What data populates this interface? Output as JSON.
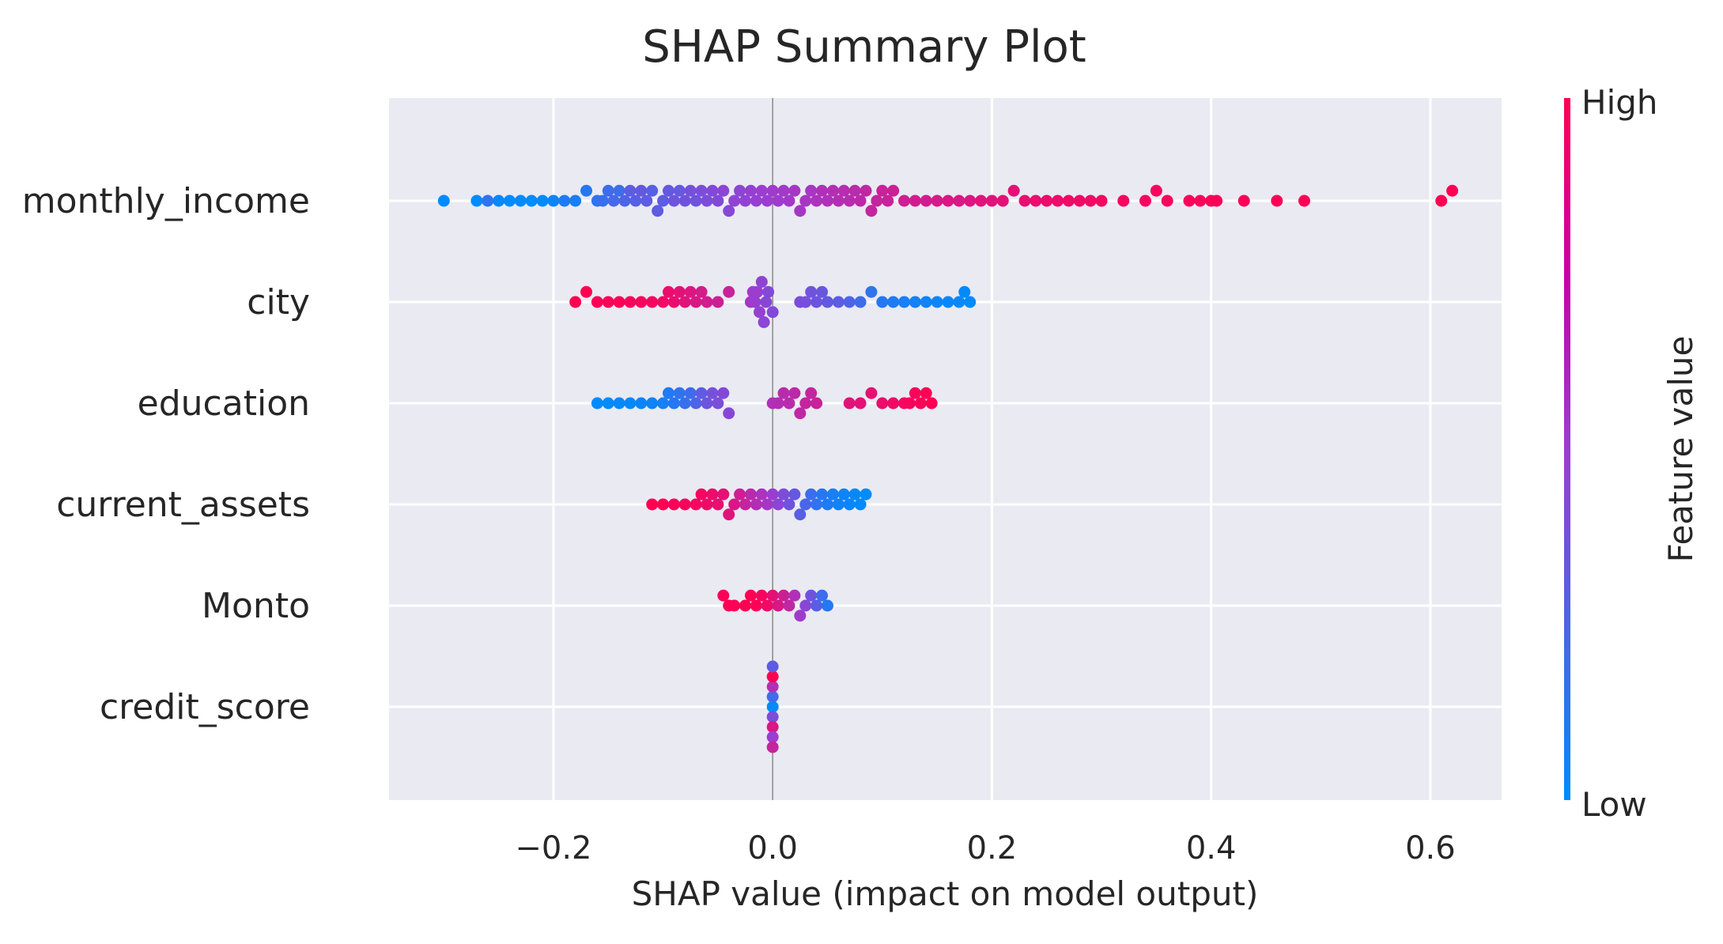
{
  "chart_data": {
    "type": "scatter",
    "subtype": "beeswarm",
    "title": "SHAP Summary Plot",
    "xlabel": "SHAP value (impact on model output)",
    "xlim": [
      -0.35,
      0.665
    ],
    "x_ticks": [
      "−0.2",
      "0.0",
      "0.2",
      "0.4",
      "0.6"
    ],
    "x_tick_values": [
      -0.2,
      0.0,
      0.2,
      0.4,
      0.6
    ],
    "grid": true,
    "background": "#eaeaf2",
    "features": [
      "monthly_income",
      "city",
      "education",
      "current_assets",
      "Monto",
      "credit_score"
    ],
    "colorbar": {
      "label": "Feature value",
      "high_label": "High",
      "low_label": "Low",
      "high_color": "#ff0052",
      "mid_color": "#c800a5",
      "low_color": "#008bfb"
    },
    "series": [
      {
        "feature": "monthly_income",
        "points": [
          [
            -0.3,
            0.0
          ],
          [
            -0.27,
            0.0
          ],
          [
            -0.26,
            0.15
          ],
          [
            -0.25,
            0.02
          ],
          [
            -0.24,
            0.0
          ],
          [
            -0.23,
            0.0
          ],
          [
            -0.22,
            0.0
          ],
          [
            -0.21,
            0.0
          ],
          [
            -0.2,
            0.05
          ],
          [
            -0.19,
            0.1
          ],
          [
            -0.18,
            0.08
          ],
          [
            -0.17,
            0.12
          ],
          [
            -0.16,
            0.15
          ],
          [
            -0.155,
            0.18
          ],
          [
            -0.15,
            0.2
          ],
          [
            -0.145,
            0.22
          ],
          [
            -0.14,
            0.2
          ],
          [
            -0.135,
            0.25
          ],
          [
            -0.13,
            0.3
          ],
          [
            -0.125,
            0.28
          ],
          [
            -0.12,
            0.32
          ],
          [
            -0.115,
            0.3
          ],
          [
            -0.11,
            0.28
          ],
          [
            -0.105,
            0.3
          ],
          [
            -0.1,
            0.3
          ],
          [
            -0.095,
            0.32
          ],
          [
            -0.09,
            0.35
          ],
          [
            -0.085,
            0.33
          ],
          [
            -0.08,
            0.36
          ],
          [
            -0.075,
            0.38
          ],
          [
            -0.07,
            0.36
          ],
          [
            -0.065,
            0.4
          ],
          [
            -0.06,
            0.4
          ],
          [
            -0.055,
            0.42
          ],
          [
            -0.05,
            0.42
          ],
          [
            -0.045,
            0.45
          ],
          [
            -0.04,
            0.44
          ],
          [
            -0.035,
            0.46
          ],
          [
            -0.03,
            0.45
          ],
          [
            -0.025,
            0.47
          ],
          [
            -0.02,
            0.48
          ],
          [
            -0.015,
            0.48
          ],
          [
            -0.01,
            0.5
          ],
          [
            -0.005,
            0.5
          ],
          [
            0.0,
            0.52
          ],
          [
            0.005,
            0.52
          ],
          [
            0.01,
            0.53
          ],
          [
            0.015,
            0.54
          ],
          [
            0.02,
            0.55
          ],
          [
            0.025,
            0.55
          ],
          [
            0.03,
            0.56
          ],
          [
            0.035,
            0.56
          ],
          [
            0.04,
            0.58
          ],
          [
            0.045,
            0.6
          ],
          [
            0.05,
            0.6
          ],
          [
            0.055,
            0.62
          ],
          [
            0.06,
            0.62
          ],
          [
            0.065,
            0.63
          ],
          [
            0.07,
            0.64
          ],
          [
            0.075,
            0.65
          ],
          [
            0.08,
            0.66
          ],
          [
            0.085,
            0.68
          ],
          [
            0.09,
            0.7
          ],
          [
            0.095,
            0.7
          ],
          [
            0.1,
            0.72
          ],
          [
            0.105,
            0.72
          ],
          [
            0.11,
            0.74
          ],
          [
            0.12,
            0.75
          ],
          [
            0.13,
            0.76
          ],
          [
            0.14,
            0.76
          ],
          [
            0.15,
            0.78
          ],
          [
            0.16,
            0.8
          ],
          [
            0.17,
            0.8
          ],
          [
            0.18,
            0.82
          ],
          [
            0.19,
            0.84
          ],
          [
            0.2,
            0.84
          ],
          [
            0.21,
            0.86
          ],
          [
            0.22,
            0.86
          ],
          [
            0.23,
            0.88
          ],
          [
            0.24,
            0.88
          ],
          [
            0.25,
            0.9
          ],
          [
            0.26,
            0.9
          ],
          [
            0.27,
            0.92
          ],
          [
            0.28,
            0.92
          ],
          [
            0.29,
            0.93
          ],
          [
            0.3,
            0.94
          ],
          [
            0.32,
            0.95
          ],
          [
            0.34,
            0.95
          ],
          [
            0.35,
            0.96
          ],
          [
            0.36,
            0.96
          ],
          [
            0.38,
            0.97
          ],
          [
            0.39,
            0.97
          ],
          [
            0.4,
            0.98
          ],
          [
            0.405,
            0.98
          ],
          [
            0.43,
            0.98
          ],
          [
            0.46,
            0.99
          ],
          [
            0.485,
            0.99
          ],
          [
            0.61,
            1.0
          ],
          [
            0.62,
            1.0
          ]
        ]
      },
      {
        "feature": "city",
        "points": [
          [
            -0.18,
            1.0
          ],
          [
            -0.17,
            1.0
          ],
          [
            -0.16,
            0.98
          ],
          [
            -0.15,
            0.98
          ],
          [
            -0.14,
            0.98
          ],
          [
            -0.13,
            0.96
          ],
          [
            -0.12,
            0.96
          ],
          [
            -0.11,
            0.94
          ],
          [
            -0.1,
            0.92
          ],
          [
            -0.095,
            0.9
          ],
          [
            -0.09,
            0.88
          ],
          [
            -0.085,
            0.86
          ],
          [
            -0.08,
            0.84
          ],
          [
            -0.075,
            0.82
          ],
          [
            -0.07,
            0.8
          ],
          [
            -0.065,
            0.78
          ],
          [
            -0.06,
            0.76
          ],
          [
            -0.05,
            0.74
          ],
          [
            -0.04,
            0.72
          ],
          [
            -0.02,
            0.55
          ],
          [
            -0.018,
            0.52
          ],
          [
            -0.016,
            0.5
          ],
          [
            -0.014,
            0.5
          ],
          [
            -0.012,
            0.48
          ],
          [
            -0.01,
            0.46
          ],
          [
            -0.008,
            0.45
          ],
          [
            -0.006,
            0.44
          ],
          [
            -0.004,
            0.42
          ],
          [
            0.0,
            0.42
          ],
          [
            0.025,
            0.4
          ],
          [
            0.03,
            0.38
          ],
          [
            0.035,
            0.36
          ],
          [
            0.04,
            0.35
          ],
          [
            0.045,
            0.34
          ],
          [
            0.05,
            0.32
          ],
          [
            0.06,
            0.3
          ],
          [
            0.07,
            0.25
          ],
          [
            0.08,
            0.2
          ],
          [
            0.09,
            0.15
          ],
          [
            0.1,
            0.12
          ],
          [
            0.11,
            0.1
          ],
          [
            0.12,
            0.08
          ],
          [
            0.13,
            0.06
          ],
          [
            0.14,
            0.05
          ],
          [
            0.15,
            0.04
          ],
          [
            0.16,
            0.03
          ],
          [
            0.17,
            0.02
          ],
          [
            0.175,
            0.01
          ],
          [
            0.18,
            0.0
          ]
        ]
      },
      {
        "feature": "education",
        "points": [
          [
            -0.16,
            0.0
          ],
          [
            -0.15,
            0.0
          ],
          [
            -0.14,
            0.02
          ],
          [
            -0.13,
            0.02
          ],
          [
            -0.12,
            0.04
          ],
          [
            -0.11,
            0.05
          ],
          [
            -0.1,
            0.08
          ],
          [
            -0.095,
            0.1
          ],
          [
            -0.09,
            0.12
          ],
          [
            -0.085,
            0.15
          ],
          [
            -0.08,
            0.18
          ],
          [
            -0.075,
            0.2
          ],
          [
            -0.07,
            0.25
          ],
          [
            -0.065,
            0.3
          ],
          [
            -0.06,
            0.35
          ],
          [
            -0.055,
            0.38
          ],
          [
            -0.05,
            0.4
          ],
          [
            -0.045,
            0.42
          ],
          [
            -0.04,
            0.44
          ],
          [
            0.0,
            0.6
          ],
          [
            0.005,
            0.62
          ],
          [
            0.01,
            0.64
          ],
          [
            0.015,
            0.65
          ],
          [
            0.02,
            0.66
          ],
          [
            0.025,
            0.68
          ],
          [
            0.03,
            0.7
          ],
          [
            0.035,
            0.7
          ],
          [
            0.04,
            0.72
          ],
          [
            0.07,
            0.84
          ],
          [
            0.08,
            0.86
          ],
          [
            0.09,
            0.88
          ],
          [
            0.1,
            0.9
          ],
          [
            0.11,
            0.92
          ],
          [
            0.12,
            0.94
          ],
          [
            0.125,
            0.96
          ],
          [
            0.13,
            0.97
          ],
          [
            0.135,
            0.98
          ],
          [
            0.14,
            0.99
          ],
          [
            0.145,
            1.0
          ]
        ]
      },
      {
        "feature": "current_assets",
        "points": [
          [
            -0.11,
            1.0
          ],
          [
            -0.1,
            1.0
          ],
          [
            -0.09,
            0.98
          ],
          [
            -0.08,
            0.96
          ],
          [
            -0.07,
            0.95
          ],
          [
            -0.065,
            0.94
          ],
          [
            -0.06,
            0.92
          ],
          [
            -0.055,
            0.9
          ],
          [
            -0.05,
            0.88
          ],
          [
            -0.045,
            0.86
          ],
          [
            -0.04,
            0.84
          ],
          [
            -0.035,
            0.8
          ],
          [
            -0.03,
            0.75
          ],
          [
            -0.025,
            0.7
          ],
          [
            -0.02,
            0.65
          ],
          [
            -0.015,
            0.62
          ],
          [
            -0.01,
            0.58
          ],
          [
            -0.005,
            0.55
          ],
          [
            0.0,
            0.5
          ],
          [
            0.005,
            0.45
          ],
          [
            0.01,
            0.4
          ],
          [
            0.015,
            0.36
          ],
          [
            0.02,
            0.32
          ],
          [
            0.025,
            0.28
          ],
          [
            0.03,
            0.24
          ],
          [
            0.035,
            0.2
          ],
          [
            0.04,
            0.16
          ],
          [
            0.045,
            0.12
          ],
          [
            0.05,
            0.1
          ],
          [
            0.055,
            0.08
          ],
          [
            0.06,
            0.06
          ],
          [
            0.065,
            0.05
          ],
          [
            0.07,
            0.04
          ],
          [
            0.075,
            0.02
          ],
          [
            0.08,
            0.01
          ],
          [
            0.085,
            0.0
          ]
        ]
      },
      {
        "feature": "Monto",
        "points": [
          [
            -0.025,
            1.0
          ],
          [
            -0.02,
            1.0
          ],
          [
            -0.015,
            0.98
          ],
          [
            -0.01,
            0.96
          ],
          [
            -0.005,
            0.92
          ],
          [
            0.0,
            0.86
          ],
          [
            0.005,
            0.8
          ],
          [
            0.01,
            0.74
          ],
          [
            0.015,
            0.68
          ],
          [
            0.02,
            0.6
          ],
          [
            0.025,
            0.52
          ],
          [
            0.03,
            0.44
          ],
          [
            0.035,
            0.36
          ],
          [
            0.04,
            0.28
          ],
          [
            0.045,
            0.2
          ],
          [
            0.05,
            0.12
          ],
          [
            -0.04,
            1.0
          ],
          [
            -0.045,
            0.98
          ],
          [
            -0.035,
            0.98
          ]
        ]
      },
      {
        "feature": "credit_score",
        "points": [
          [
            0.0,
            0.0
          ],
          [
            0.0,
            0.2
          ],
          [
            0.0,
            0.4
          ],
          [
            0.0,
            0.6
          ],
          [
            0.0,
            0.8
          ],
          [
            0.0,
            1.0
          ],
          [
            0.0,
            0.5
          ],
          [
            0.0,
            0.3
          ],
          [
            0.0,
            0.7
          ]
        ]
      }
    ]
  }
}
